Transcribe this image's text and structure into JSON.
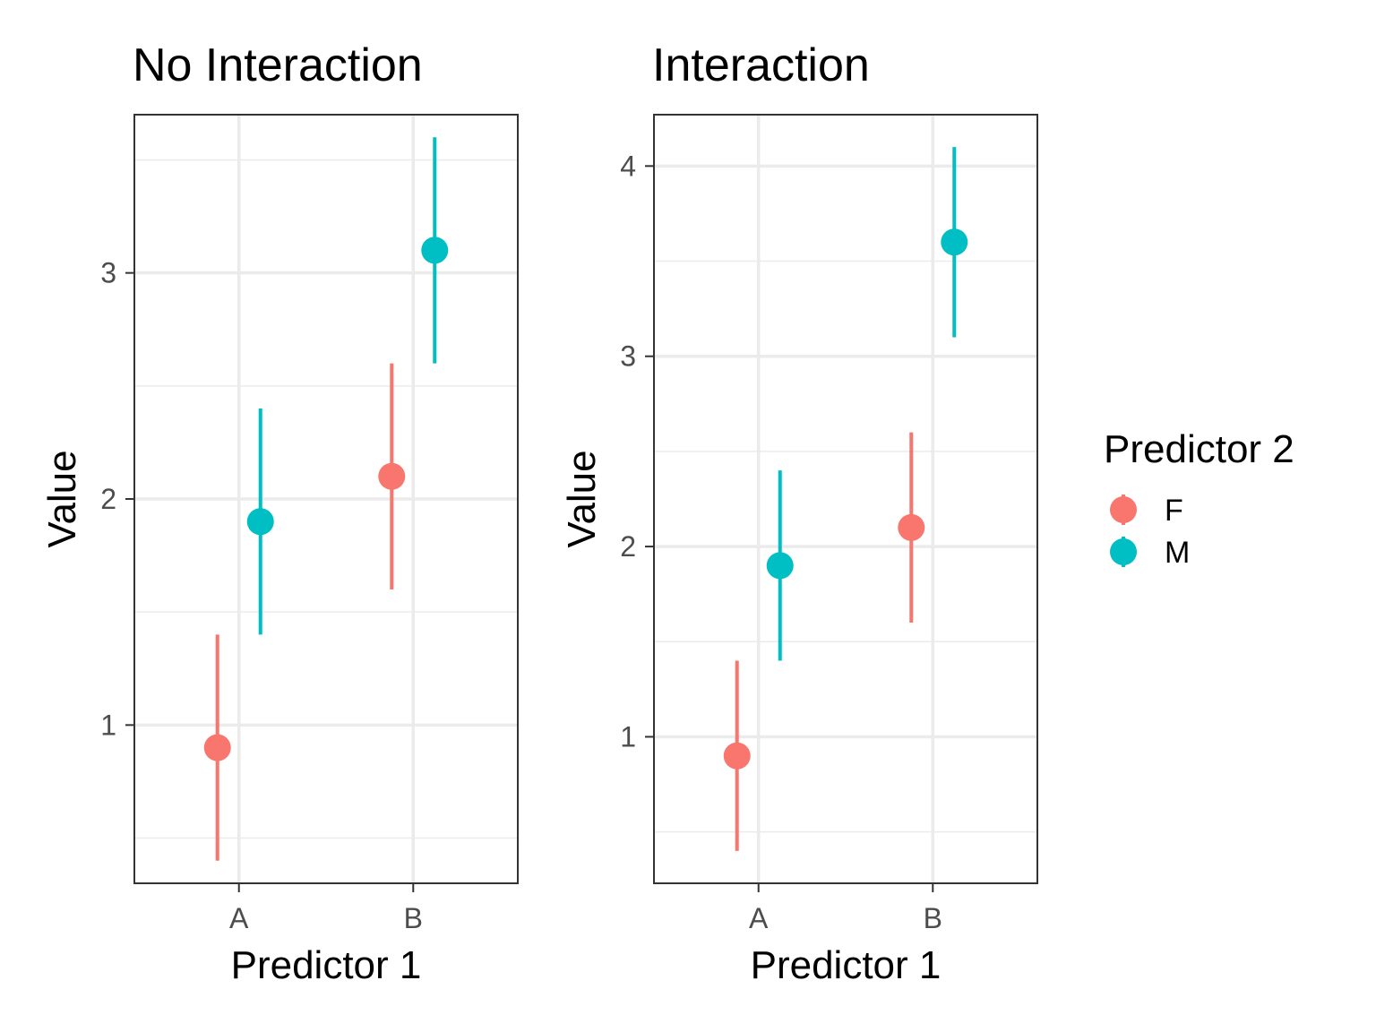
{
  "chart_data": [
    {
      "type": "scatter",
      "title": "No Interaction",
      "xlabel": "Predictor 1",
      "ylabel": "Value",
      "categories": [
        "A",
        "B"
      ],
      "ylim": [
        0.3,
        3.7
      ],
      "yticks": [
        "1",
        "2",
        "3"
      ],
      "grid": true,
      "series": [
        {
          "name": "F",
          "color": "#F8766D",
          "points": [
            {
              "x": "A",
              "y": 0.9,
              "lower": 0.4,
              "upper": 1.4
            },
            {
              "x": "B",
              "y": 2.1,
              "lower": 1.6,
              "upper": 2.6
            }
          ]
        },
        {
          "name": "M",
          "color": "#00BFC4",
          "points": [
            {
              "x": "A",
              "y": 1.9,
              "lower": 1.4,
              "upper": 2.4
            },
            {
              "x": "B",
              "y": 3.1,
              "lower": 2.6,
              "upper": 3.6
            }
          ]
        }
      ]
    },
    {
      "type": "scatter",
      "title": "Interaction",
      "xlabel": "Predictor 1",
      "ylabel": "Value",
      "categories": [
        "A",
        "B"
      ],
      "ylim": [
        0.23,
        4.27
      ],
      "yticks": [
        "1",
        "2",
        "3",
        "4"
      ],
      "grid": true,
      "series": [
        {
          "name": "F",
          "color": "#F8766D",
          "points": [
            {
              "x": "A",
              "y": 0.9,
              "lower": 0.4,
              "upper": 1.4
            },
            {
              "x": "B",
              "y": 2.1,
              "lower": 1.6,
              "upper": 2.6
            }
          ]
        },
        {
          "name": "M",
          "color": "#00BFC4",
          "points": [
            {
              "x": "A",
              "y": 1.9,
              "lower": 1.4,
              "upper": 2.4
            },
            {
              "x": "B",
              "y": 3.6,
              "lower": 3.1,
              "upper": 4.1
            }
          ]
        }
      ]
    }
  ],
  "legend": {
    "title": "Predictor 2",
    "position": "right",
    "items": [
      {
        "label": "F",
        "color": "#F8766D"
      },
      {
        "label": "M",
        "color": "#00BFC4"
      }
    ]
  }
}
